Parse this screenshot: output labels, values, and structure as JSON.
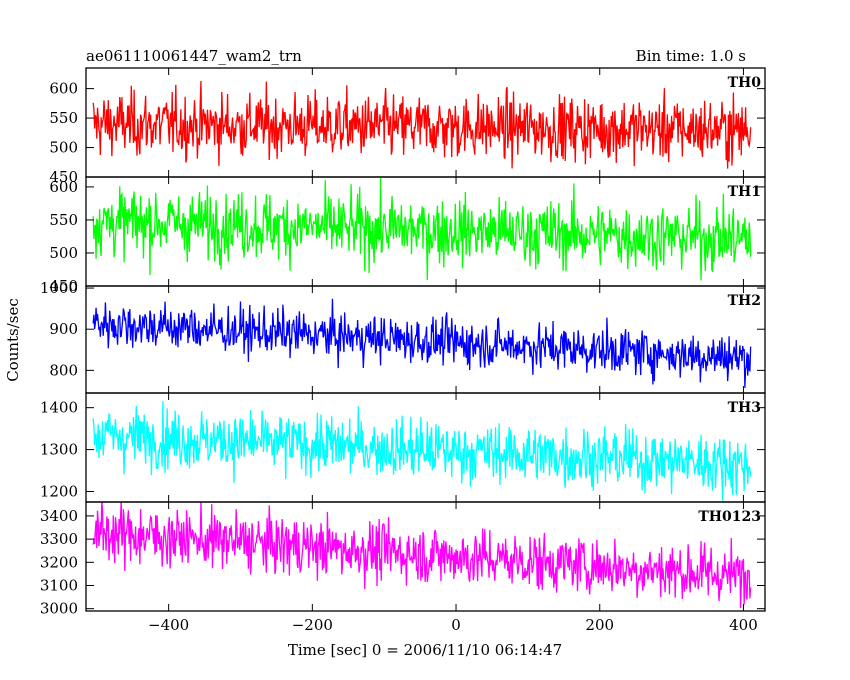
{
  "header": {
    "left": "ae061110061447_wam2_trn",
    "right": "Bin time: 1.0 s"
  },
  "xlabel": "Time [sec] 0 = 2006/11/10 06:14:47",
  "ylabel": "Counts/sec",
  "chart_data": {
    "type": "line",
    "title": "ae061110061447_wam2_trn",
    "subtitle": "Bin time: 1.0 s",
    "xlabel": "Time [sec] 0 = 2006/11/10 06:14:47",
    "ylabel": "Counts/sec",
    "xlim": [
      -515,
      430
    ],
    "x_range_of_data": [
      -505,
      410
    ],
    "bin_time_s": 1.0,
    "xticks": [
      -400,
      -200,
      0,
      200,
      400
    ],
    "panels": [
      {
        "name": "TH0",
        "color": "#ff0000",
        "ylim": [
          450,
          635
        ],
        "yticks": [
          450,
          500,
          550,
          600
        ],
        "mean_start": 540,
        "mean_end": 530,
        "noise_sigma": 27,
        "points": [
          {
            "x": -505,
            "y": 540
          },
          {
            "x": -400,
            "y": 538
          },
          {
            "x": -300,
            "y": 537
          },
          {
            "x": -200,
            "y": 536
          },
          {
            "x": -100,
            "y": 535
          },
          {
            "x": 0,
            "y": 534
          },
          {
            "x": 100,
            "y": 533
          },
          {
            "x": 200,
            "y": 532
          },
          {
            "x": 300,
            "y": 531
          },
          {
            "x": 410,
            "y": 530
          }
        ]
      },
      {
        "name": "TH1",
        "color": "#00ff00",
        "ylim": [
          450,
          615
        ],
        "yticks": [
          450,
          500,
          550,
          600
        ],
        "mean_start": 548,
        "mean_end": 522,
        "noise_sigma": 25,
        "points": [
          {
            "x": -505,
            "y": 548
          },
          {
            "x": -400,
            "y": 545
          },
          {
            "x": -300,
            "y": 542
          },
          {
            "x": -200,
            "y": 539
          },
          {
            "x": -100,
            "y": 536
          },
          {
            "x": 0,
            "y": 533
          },
          {
            "x": 100,
            "y": 530
          },
          {
            "x": 200,
            "y": 527
          },
          {
            "x": 300,
            "y": 525
          },
          {
            "x": 410,
            "y": 522
          }
        ]
      },
      {
        "name": "TH2",
        "color": "#0000ff",
        "ylim": [
          745,
          1005
        ],
        "yticks": [
          800,
          900,
          1000
        ],
        "mean_start": 915,
        "mean_end": 830,
        "noise_sigma": 28,
        "points": [
          {
            "x": -505,
            "y": 915
          },
          {
            "x": -400,
            "y": 906
          },
          {
            "x": -300,
            "y": 896
          },
          {
            "x": -200,
            "y": 887
          },
          {
            "x": -100,
            "y": 877
          },
          {
            "x": 0,
            "y": 868
          },
          {
            "x": 100,
            "y": 859
          },
          {
            "x": 200,
            "y": 849
          },
          {
            "x": 300,
            "y": 840
          },
          {
            "x": 410,
            "y": 830
          }
        ]
      },
      {
        "name": "TH3",
        "color": "#00ffff",
        "ylim": [
          1175,
          1435
        ],
        "yticks": [
          1200,
          1300,
          1400
        ],
        "mean_start": 1335,
        "mean_end": 1265,
        "noise_sigma": 35,
        "points": [
          {
            "x": -505,
            "y": 1335
          },
          {
            "x": -400,
            "y": 1327
          },
          {
            "x": -300,
            "y": 1319
          },
          {
            "x": -200,
            "y": 1311
          },
          {
            "x": -100,
            "y": 1304
          },
          {
            "x": 0,
            "y": 1296
          },
          {
            "x": 100,
            "y": 1288
          },
          {
            "x": 200,
            "y": 1280
          },
          {
            "x": 300,
            "y": 1273
          },
          {
            "x": 410,
            "y": 1265
          }
        ]
      },
      {
        "name": "TH0123",
        "color": "#ff00ff",
        "ylim": [
          2990,
          3460
        ],
        "yticks": [
          3000,
          3100,
          3200,
          3300,
          3400
        ],
        "mean_start": 3330,
        "mean_end": 3140,
        "noise_sigma": 62,
        "points": [
          {
            "x": -505,
            "y": 3330
          },
          {
            "x": -400,
            "y": 3309
          },
          {
            "x": -300,
            "y": 3288
          },
          {
            "x": -200,
            "y": 3267
          },
          {
            "x": -100,
            "y": 3246
          },
          {
            "x": 0,
            "y": 3224
          },
          {
            "x": 100,
            "y": 3203
          },
          {
            "x": 200,
            "y": 3182
          },
          {
            "x": 300,
            "y": 3161
          },
          {
            "x": 410,
            "y": 3140
          }
        ]
      }
    ]
  }
}
